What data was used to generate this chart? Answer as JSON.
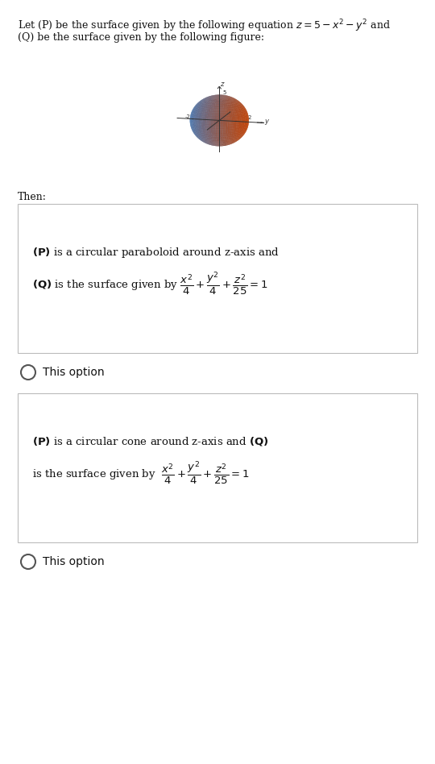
{
  "bg_color": "#e8e8f0",
  "page_bg": "#ffffff",
  "header_line1": "Let (P) be the surface given by the following equation $z = 5 - x^2 - y^2$ and",
  "header_line2": "(Q) be the surface given by the following figure:",
  "then_text": "Then:",
  "option1_line1": "(P) is a circular paraboloid around z-axis and",
  "option1_line2": "(Q) is the surface given by $\\dfrac{x^2}{4}+\\dfrac{y^2}{4}+\\dfrac{z^2}{25} = 1$",
  "option2_line1": "(P) is a circular cone around z-axis and (Q)",
  "option2_line2": "is the surface given by $\\dfrac{x^2}{4}+\\dfrac{y^2}{4}+\\dfrac{z^2}{25} = 1$",
  "radio_label": "This option",
  "ellipsoid_a": 2,
  "ellipsoid_b": 2,
  "ellipsoid_c": 5,
  "blue_color": "#4a7ab5",
  "orange_color": "#c0440a",
  "axis_color": "#333333",
  "box_edge_color": "#bbbbbb",
  "text_color": "#111111"
}
